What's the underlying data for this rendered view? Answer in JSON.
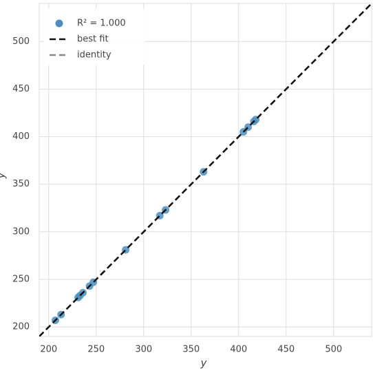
{
  "chart_data": {
    "type": "scatter",
    "x_label": "y",
    "y_label": "ŷ",
    "xlim": [
      190,
      540
    ],
    "ylim": [
      190,
      540
    ],
    "xticks": [
      200,
      250,
      300,
      350,
      400,
      450,
      500
    ],
    "yticks": [
      200,
      250,
      300,
      350,
      400,
      450,
      500
    ],
    "grid": true,
    "legend": "upper left",
    "series": [
      {
        "name": "R² = 1.000",
        "mark": "point",
        "color": "#4a8fc0",
        "x": [
          207,
          213,
          231,
          233,
          236,
          243,
          247,
          281,
          317,
          323,
          363,
          405,
          410,
          416,
          418
        ],
        "values": [
          207,
          213,
          231,
          233,
          236,
          243,
          247,
          281,
          317,
          323,
          363,
          405,
          410,
          416,
          418
        ]
      },
      {
        "name": "best fit",
        "mark": "dashed-line",
        "color": "#111111",
        "x": [
          190,
          540
        ],
        "values": [
          190,
          540
        ]
      },
      {
        "name": "identity",
        "mark": "dashed-line",
        "color": "#888888",
        "x": [
          190,
          540
        ],
        "values": [
          190,
          540
        ]
      }
    ]
  }
}
